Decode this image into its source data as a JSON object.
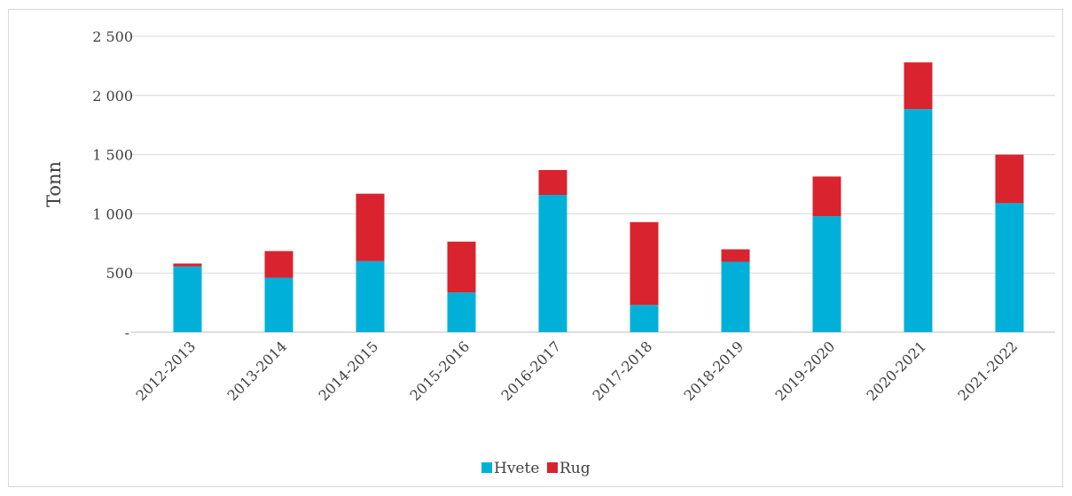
{
  "chart_data": {
    "type": "bar",
    "stacked": true,
    "categories": [
      "2012-2013",
      "2013-2014",
      "2014-2015",
      "2015-2016",
      "2016-2017",
      "2017-2018",
      "2018-2019",
      "2019-2020",
      "2020-2021",
      "2021-2022"
    ],
    "series": [
      {
        "name": "Hvete",
        "color": "#00b0d8",
        "values": [
          555,
          460,
          600,
          335,
          1160,
          230,
          595,
          980,
          1885,
          1090
        ]
      },
      {
        "name": "Rug",
        "color": "#d9232e",
        "values": [
          25,
          225,
          570,
          430,
          210,
          700,
          105,
          335,
          395,
          410
        ]
      }
    ],
    "ylabel": "Tonn",
    "xlabel": "",
    "ylim": [
      0,
      2500
    ],
    "yticks": [
      0,
      500,
      1000,
      1500,
      2000,
      2500
    ],
    "ytick_labels": [
      "-",
      "500",
      "1 000",
      "1 500",
      "2 000",
      "2 500"
    ],
    "grid": true,
    "legend_position": "bottom"
  }
}
